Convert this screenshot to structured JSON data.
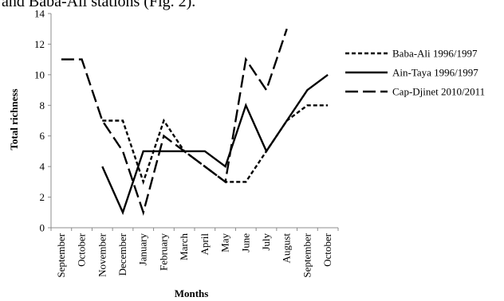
{
  "top_text": "and Baba-Ali stations (Fig. 2).",
  "chart_data": {
    "type": "line",
    "xlabel": "Months",
    "ylabel": "Total richness",
    "ylim": [
      0,
      14
    ],
    "yticks": [
      0,
      2,
      4,
      6,
      8,
      10,
      12,
      14
    ],
    "grid": false,
    "legend_position": "right",
    "categories": [
      "September",
      "October",
      "November",
      "December",
      "January",
      "February",
      "March",
      "April",
      "May",
      "June",
      "July",
      "August",
      "September",
      "October"
    ],
    "series": [
      {
        "name": "Baba-Ali 1996/1997",
        "dash": "short-dash",
        "values": [
          null,
          null,
          7,
          7,
          3,
          7,
          5,
          4,
          3,
          3,
          5,
          7,
          8,
          8
        ]
      },
      {
        "name": "Ain-Taya 1996/1997",
        "dash": "solid",
        "values": [
          null,
          null,
          4,
          1,
          5,
          5,
          5,
          5,
          4,
          8,
          5,
          7,
          9,
          10
        ]
      },
      {
        "name": "Cap-Djinet 2010/2011",
        "dash": "long-dash",
        "values": [
          11,
          11,
          7,
          5,
          1,
          6,
          5,
          4,
          3,
          11,
          9,
          13,
          null,
          null
        ]
      }
    ]
  }
}
